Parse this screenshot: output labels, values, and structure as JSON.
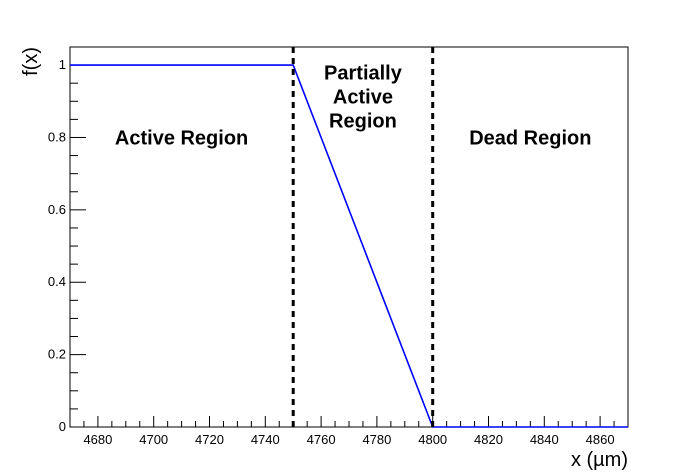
{
  "chart_data": {
    "type": "line",
    "xlabel": "x (µm)",
    "ylabel": "f(x)",
    "xlim": [
      4670,
      4870
    ],
    "ylim": [
      0,
      1.05
    ],
    "x_ticks": [
      4680,
      4700,
      4720,
      4740,
      4760,
      4780,
      4800,
      4820,
      4840,
      4860
    ],
    "y_ticks": [
      0,
      0.2,
      0.4,
      0.6,
      0.8,
      1
    ],
    "y_tick_labels": [
      "0",
      "0.2",
      "0.4",
      "0.6",
      "0.8",
      "1"
    ],
    "grid": false,
    "line_color": "#0000ff",
    "series": [
      {
        "x": [
          4670,
          4750,
          4800,
          4870
        ],
        "y": [
          1,
          1,
          0,
          0
        ]
      }
    ],
    "boundaries": [
      4750,
      4800
    ],
    "regions": [
      {
        "lines": [
          "Active Region"
        ],
        "x": 4710,
        "y": 0.78
      },
      {
        "lines": [
          "Partially",
          "Active",
          "Region"
        ],
        "x": 4775,
        "y": 0.96
      },
      {
        "lines": [
          "Dead Region"
        ],
        "x": 4835,
        "y": 0.78
      }
    ]
  }
}
